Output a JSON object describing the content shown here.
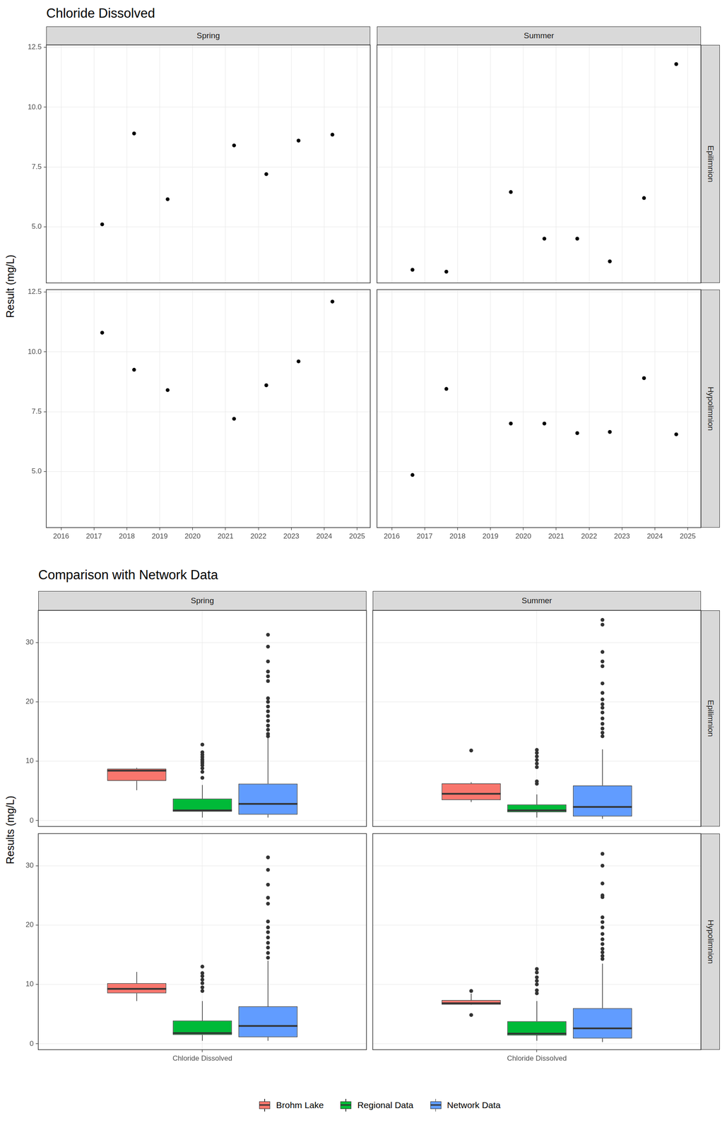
{
  "chart_data": [
    {
      "type": "scatter",
      "title": "Chloride Dissolved",
      "y_label": "Result (mg/L)",
      "columns": [
        "Spring",
        "Summer"
      ],
      "rows": [
        "Epilimnion",
        "Hypolimnion"
      ],
      "xlim": [
        2015.55,
        2025.4
      ],
      "xticks": [
        2016,
        2017,
        2018,
        2019,
        2020,
        2021,
        2022,
        2023,
        2024,
        2025
      ],
      "ylim": [
        2.65,
        12.6
      ],
      "yticks": [
        {
          "value": 5,
          "label": "5.0"
        },
        7.5,
        {
          "value": 10,
          "label": "10.0"
        },
        12.5
      ],
      "grid": true,
      "color": "#000000",
      "marker": "circle",
      "panels": [
        {
          "column": "Spring",
          "row": "Epilimnion",
          "x": [
            2017.25,
            2018.22,
            2019.24,
            2021.26,
            2022.24,
            2023.22,
            2024.25
          ],
          "values": [
            5.1,
            8.9,
            6.15,
            8.4,
            7.2,
            8.6,
            8.85
          ]
        },
        {
          "column": "Summer",
          "row": "Epilimnion",
          "x": [
            2016.63,
            2017.66,
            2019.62,
            2020.64,
            2021.64,
            2022.63,
            2023.67,
            2024.65
          ],
          "values": [
            3.2,
            3.12,
            6.45,
            4.5,
            4.5,
            3.55,
            6.2,
            11.8
          ]
        },
        {
          "column": "Spring",
          "row": "Hypolimnion",
          "x": [
            2017.25,
            2018.22,
            2019.24,
            2021.26,
            2022.24,
            2023.22,
            2024.25
          ],
          "values": [
            10.8,
            9.25,
            8.4,
            7.2,
            8.6,
            9.6,
            12.1
          ]
        },
        {
          "column": "Summer",
          "row": "Hypolimnion",
          "x": [
            2016.63,
            2017.66,
            2019.62,
            2020.64,
            2021.64,
            2022.63,
            2023.67,
            2024.65
          ],
          "values": [
            4.85,
            8.45,
            7.0,
            7.0,
            6.6,
            6.65,
            8.9,
            6.55
          ]
        }
      ]
    },
    {
      "type": "boxplot",
      "title": "Comparison with Network Data",
      "y_label": "Results (mg/L)",
      "columns": [
        "Spring",
        "Summer"
      ],
      "rows": [
        "Epilimnion",
        "Hypolimnion"
      ],
      "categories": [
        "Chloride Dissolved"
      ],
      "ylim": [
        -1,
        35.4
      ],
      "yticks": [
        0,
        10,
        20,
        30
      ],
      "grid": true,
      "legend": "bottom",
      "series": [
        {
          "name": "Brohm Lake",
          "color": "#F8766D"
        },
        {
          "name": "Regional Data",
          "color": "#00BA38"
        },
        {
          "name": "Network Data",
          "color": "#619CFF"
        }
      ],
      "panels": [
        {
          "column": "Spring",
          "row": "Epilimnion",
          "boxes": [
            {
              "series": "Brohm Lake",
              "q1": 6.68,
              "median": 8.4,
              "q3": 8.73,
              "whisker_low": 5.1,
              "whisker_high": 8.9,
              "outliers": []
            },
            {
              "series": "Regional Data",
              "q1": 1.5,
              "median": 1.7,
              "q3": 3.7,
              "whisker_low": 0.5,
              "whisker_high": 6.0,
              "outliers": [
                7.2,
                8.2,
                8.8,
                9.3,
                9.7,
                10.0,
                10.3,
                10.7,
                11.1,
                11.5,
                12.8
              ]
            },
            {
              "series": "Network Data",
              "q1": 1.0,
              "median": 2.8,
              "q3": 6.2,
              "whisker_low": 0.5,
              "whisker_high": 14.0,
              "outliers": [
                14.2,
                14.6,
                15.3,
                16.0,
                16.8,
                17.6,
                18.4,
                19.2,
                20.0,
                20.6,
                23.5,
                24.3,
                25.1,
                26.8,
                29.3,
                31.3
              ]
            }
          ]
        },
        {
          "column": "Summer",
          "row": "Epilimnion",
          "boxes": [
            {
              "series": "Brohm Lake",
              "q1": 3.46,
              "median": 4.5,
              "q3": 6.26,
              "whisker_low": 3.12,
              "whisker_high": 6.45,
              "outliers": [
                11.8
              ]
            },
            {
              "series": "Regional Data",
              "q1": 1.4,
              "median": 1.7,
              "q3": 2.7,
              "whisker_low": 0.5,
              "whisker_high": 4.4,
              "outliers": [
                6.2,
                6.6,
                9.0,
                9.6,
                10.2,
                10.8,
                11.4,
                11.9
              ]
            },
            {
              "series": "Network Data",
              "q1": 0.7,
              "median": 2.3,
              "q3": 5.9,
              "whisker_low": 0.3,
              "whisker_high": 12.0,
              "outliers": [
                14.2,
                14.8,
                15.5,
                16.3,
                17.2,
                18.2,
                19.0,
                19.6,
                20.4,
                21.5,
                23.1,
                26.0,
                26.8,
                28.4,
                33.0,
                33.8
              ]
            }
          ]
        },
        {
          "column": "Spring",
          "row": "Hypolimnion",
          "boxes": [
            {
              "series": "Brohm Lake",
              "q1": 8.5,
              "median": 9.25,
              "q3": 10.2,
              "whisker_low": 7.2,
              "whisker_high": 12.1,
              "outliers": []
            },
            {
              "series": "Regional Data",
              "q1": 1.5,
              "median": 1.8,
              "q3": 3.9,
              "whisker_low": 0.5,
              "whisker_high": 7.2,
              "outliers": [
                8.9,
                9.5,
                10.2,
                10.8,
                11.4,
                11.9,
                13.0
              ]
            },
            {
              "series": "Network Data",
              "q1": 1.1,
              "median": 3.0,
              "q3": 6.3,
              "whisker_low": 0.5,
              "whisker_high": 14.0,
              "outliers": [
                14.5,
                15.3,
                16.2,
                17.0,
                17.9,
                18.8,
                19.6,
                20.6,
                23.6,
                24.6,
                26.8,
                29.3,
                31.4
              ]
            }
          ]
        },
        {
          "column": "Summer",
          "row": "Hypolimnion",
          "boxes": [
            {
              "series": "Brohm Lake",
              "q1": 6.59,
              "median": 6.83,
              "q3": 7.36,
              "whisker_low": 6.55,
              "whisker_high": 8.45,
              "outliers": [
                4.85,
                8.9
              ]
            },
            {
              "series": "Regional Data",
              "q1": 1.4,
              "median": 1.7,
              "q3": 3.8,
              "whisker_low": 0.5,
              "whisker_high": 7.2,
              "outliers": [
                8.5,
                9.0,
                10.0,
                10.6,
                11.2,
                12.0,
                12.6
              ]
            },
            {
              "series": "Network Data",
              "q1": 0.9,
              "median": 2.6,
              "q3": 6.0,
              "whisker_low": 0.3,
              "whisker_high": 13.5,
              "outliers": [
                14.3,
                14.8,
                15.4,
                16.0,
                16.8,
                17.6,
                18.5,
                19.6,
                20.5,
                21.3,
                24.7,
                25.0,
                27.0,
                30.0,
                32.0
              ]
            }
          ]
        }
      ]
    }
  ]
}
